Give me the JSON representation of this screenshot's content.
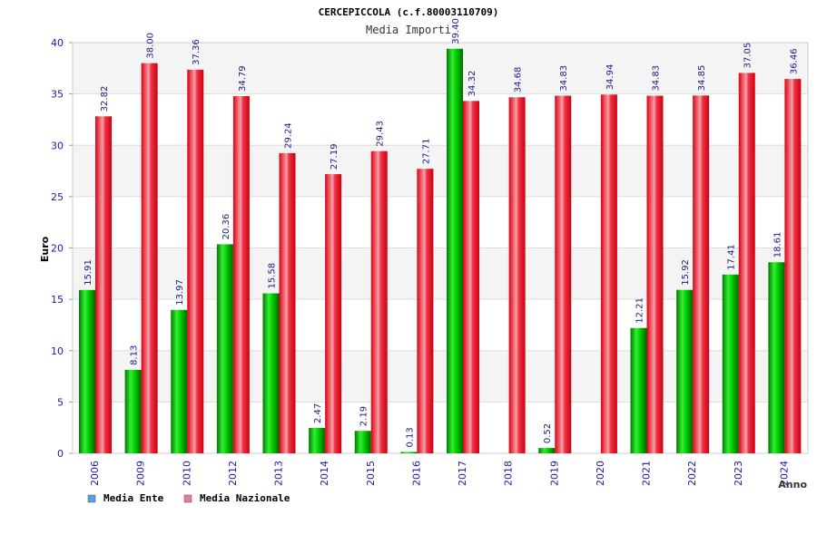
{
  "chart_data": {
    "type": "bar",
    "title": "CERCEPICCOLA (c.f.80003110709)",
    "subtitle": "Media Importi",
    "ylabel": "Euro",
    "xlabel": "Anno",
    "ylim": [
      0,
      40
    ],
    "yticks": [
      0,
      5,
      10,
      15,
      20,
      25,
      30,
      35,
      40
    ],
    "grid": true,
    "legend_position": "bottom-left",
    "categories": [
      "2006",
      "2009",
      "2010",
      "2012",
      "2013",
      "2014",
      "2015",
      "2016",
      "2017",
      "2018",
      "2019",
      "2020",
      "2021",
      "2022",
      "2023",
      "2024"
    ],
    "series": [
      {
        "name": "Media Ente",
        "color": "#00cc00",
        "legend_color": "#5aa0e6",
        "values": [
          15.91,
          8.13,
          13.97,
          20.36,
          15.58,
          2.47,
          2.19,
          0.13,
          39.4,
          null,
          0.52,
          null,
          12.21,
          15.92,
          17.41,
          18.61
        ],
        "labels": [
          "15.91",
          "8.13",
          "13.97",
          "20.36",
          "15.58",
          "2.47",
          "2.19",
          "0.13",
          "39.40",
          "",
          "0.52",
          "",
          "12.21",
          "15.92",
          "17.41",
          "18.61"
        ]
      },
      {
        "name": "Media Nazionale",
        "color": "#ee1122",
        "legend_color": "#e87aa8",
        "values": [
          32.82,
          38.0,
          37.36,
          34.79,
          29.24,
          27.19,
          29.43,
          27.71,
          34.32,
          34.68,
          34.83,
          34.94,
          34.83,
          34.85,
          37.05,
          36.46
        ],
        "labels": [
          "32.82",
          "38.00",
          "37.36",
          "34.79",
          "29.24",
          "27.19",
          "29.43",
          "27.71",
          "34.32",
          "34.68",
          "34.83",
          "34.94",
          "34.83",
          "34.85",
          "37.05",
          "36.46"
        ]
      }
    ]
  }
}
